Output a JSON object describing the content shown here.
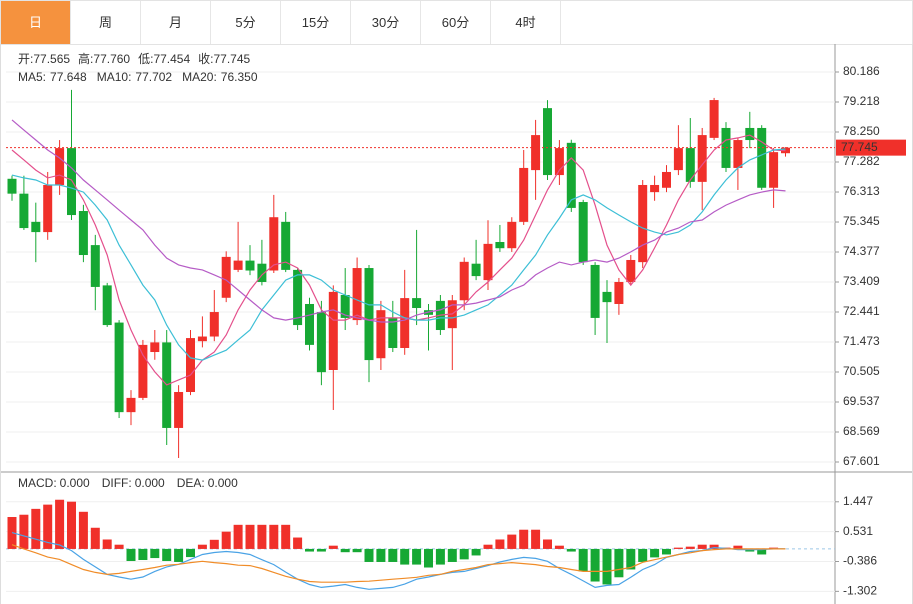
{
  "tabs": [
    "日",
    "周",
    "月",
    "5分",
    "15分",
    "30分",
    "60分",
    "4时"
  ],
  "active_tab": 0,
  "chart_data": [
    {
      "type": "candlestick",
      "info": [
        {
          "label": "开:",
          "value": "77.565"
        },
        {
          "label": "高:",
          "value": "77.760"
        },
        {
          "label": "低:",
          "value": "77.454"
        },
        {
          "label": "收:",
          "value": "77.745"
        }
      ],
      "up_color": "#f0302a",
      "down_color": "#16a834",
      "open": [
        76.74,
        76.26,
        75.35,
        75.02,
        76.54,
        77.73,
        75.7,
        74.6,
        73.3,
        72.1,
        69.21,
        69.67,
        71.15,
        71.46,
        68.7,
        69.86,
        71.5,
        71.65,
        72.9,
        73.8,
        74.1,
        74.0,
        73.78,
        75.35,
        73.8,
        72.7,
        72.44,
        70.57,
        72.99,
        72.18,
        73.86,
        70.95,
        72.25,
        71.28,
        72.89,
        72.5,
        72.8,
        71.92,
        72.82,
        74.0,
        73.47,
        74.7,
        74.5,
        75.35,
        77.02,
        79.02,
        76.86,
        77.9,
        75.99,
        73.96,
        73.09,
        72.7,
        73.41,
        74.05,
        76.31,
        76.45,
        77.02,
        77.73,
        76.64,
        78.06,
        78.38,
        77.09,
        78.38,
        78.38,
        76.45,
        77.565
      ],
      "high": [
        76.84,
        76.84,
        75.97,
        76.96,
        77.99,
        79.61,
        75.9,
        74.93,
        73.38,
        72.18,
        69.92,
        71.54,
        71.86,
        71.86,
        70.08,
        71.86,
        72.3,
        73.15,
        74.4,
        75.35,
        74.6,
        74.77,
        76.22,
        75.67,
        73.86,
        72.9,
        72.8,
        73.3,
        73.86,
        74.2,
        73.96,
        72.8,
        72.8,
        73.8,
        75.09,
        72.7,
        72.99,
        72.99,
        74.2,
        74.77,
        75.4,
        75.25,
        75.5,
        77.67,
        78.64,
        79.28,
        77.99,
        78.0,
        76.06,
        74.05,
        73.47,
        73.54,
        74.28,
        76.7,
        76.84,
        77.18,
        78.47,
        78.7,
        78.38,
        79.35,
        78.57,
        78.06,
        78.9,
        78.47,
        77.73,
        77.76
      ],
      "low": [
        76.03,
        75.09,
        74.05,
        74.77,
        76.22,
        75.41,
        74.05,
        72.5,
        71.96,
        69.02,
        68.79,
        69.6,
        70.9,
        68.15,
        67.73,
        69.76,
        71.3,
        71.5,
        72.76,
        73.73,
        73.63,
        73.3,
        73.7,
        73.73,
        71.86,
        71.2,
        70.08,
        69.28,
        71.86,
        72.02,
        70.18,
        70.57,
        71.15,
        71.06,
        72.02,
        71.2,
        71.7,
        70.57,
        72.5,
        73.47,
        73.15,
        74.38,
        74.38,
        75.25,
        76.06,
        76.7,
        76.54,
        75.67,
        73.96,
        71.7,
        71.44,
        72.35,
        73.3,
        73.86,
        76.03,
        76.31,
        76.86,
        76.45,
        75.73,
        77.99,
        76.96,
        76.38,
        77.73,
        76.38,
        75.8,
        77.454
      ],
      "close": [
        76.26,
        75.15,
        75.02,
        76.54,
        77.73,
        75.57,
        74.28,
        73.25,
        72.02,
        69.21,
        69.67,
        71.38,
        71.46,
        68.7,
        69.86,
        71.6,
        71.65,
        72.44,
        74.22,
        74.1,
        73.78,
        73.41,
        75.5,
        73.8,
        72.02,
        71.38,
        70.5,
        73.09,
        72.25,
        73.86,
        70.89,
        72.5,
        71.28,
        72.89,
        72.57,
        72.35,
        71.86,
        72.82,
        74.06,
        73.6,
        74.64,
        74.5,
        75.35,
        77.09,
        78.15,
        76.86,
        77.73,
        75.8,
        74.05,
        72.25,
        72.76,
        73.41,
        74.12,
        76.54,
        76.54,
        76.96,
        77.73,
        76.64,
        78.15,
        79.28,
        77.09,
        77.99,
        77.99,
        76.45,
        77.6,
        77.745
      ],
      "series": [
        {
          "name": "MA5:",
          "value_label": "77.648",
          "color": "#e4508c",
          "values": [
            77.67,
            77.35,
            77.02,
            76.77,
            76.86,
            76.7,
            76.06,
            75.25,
            74.28,
            72.83,
            71.86,
            71.05,
            70.51,
            70.09,
            70.25,
            70.41,
            70.89,
            71.15,
            71.7,
            72.51,
            73.15,
            73.64,
            73.96,
            74.05,
            73.86,
            73.31,
            72.51,
            72.18,
            72.18,
            72.34,
            72.18,
            72.25,
            72.25,
            72.25,
            72.18,
            72.25,
            72.34,
            72.38,
            72.67,
            73.09,
            73.41,
            73.8,
            74.18,
            74.76,
            75.57,
            76.38,
            77.02,
            77.41,
            77.02,
            75.89,
            74.6,
            73.8,
            73.31,
            73.8,
            74.51,
            75.25,
            76.06,
            76.7,
            77.19,
            77.67,
            77.99,
            78.06,
            78.15,
            77.93,
            77.67,
            77.648
          ]
        },
        {
          "name": "MA10:",
          "value_label": "77.702",
          "color": "#3dbfd6",
          "values": [
            76.86,
            76.77,
            76.7,
            76.54,
            76.54,
            76.44,
            76.31,
            75.89,
            75.41,
            74.6,
            73.96,
            73.31,
            72.83,
            72.02,
            71.38,
            70.96,
            70.89,
            71.05,
            71.21,
            71.54,
            71.86,
            72.51,
            72.99,
            73.47,
            73.64,
            73.64,
            73.47,
            73.15,
            72.99,
            72.83,
            72.67,
            72.67,
            72.44,
            72.25,
            72.18,
            72.18,
            72.25,
            72.25,
            72.34,
            72.51,
            72.67,
            72.99,
            73.31,
            73.8,
            74.28,
            74.93,
            75.47,
            76.06,
            76.22,
            76.06,
            75.8,
            75.57,
            75.35,
            75.15,
            75.02,
            74.93,
            75.02,
            75.25,
            75.67,
            76.22,
            76.7,
            77.09,
            77.35,
            77.51,
            77.67,
            77.702
          ]
        },
        {
          "name": "MA20:",
          "value_label": "76.350",
          "color": "#b65cc6",
          "values": [
            78.64,
            78.31,
            77.99,
            77.67,
            77.41,
            77.09,
            76.7,
            76.38,
            76.06,
            75.73,
            75.41,
            75.09,
            74.6,
            74.18,
            73.96,
            73.86,
            73.8,
            73.64,
            73.47,
            73.15,
            72.83,
            72.51,
            72.25,
            72.18,
            72.25,
            72.34,
            72.44,
            72.51,
            72.34,
            72.25,
            72.18,
            72.12,
            72.12,
            72.18,
            72.34,
            72.44,
            72.51,
            72.67,
            72.67,
            72.73,
            72.83,
            72.93,
            73.15,
            73.31,
            73.64,
            73.86,
            74.05,
            73.96,
            74.05,
            74.12,
            74.05,
            74.18,
            74.38,
            74.6,
            74.76,
            75.02,
            75.15,
            75.35,
            75.41,
            75.67,
            75.89,
            76.06,
            76.22,
            76.31,
            76.38,
            76.35
          ]
        }
      ],
      "ylim": [
        67.343,
        81.057
      ],
      "yticks": [
        80.186,
        79.218,
        {
          "value": 78.25,
          "label": "78.250"
        },
        77.282,
        76.313,
        75.345,
        74.377,
        73.409,
        72.441,
        71.473,
        70.505,
        69.537,
        68.569,
        67.601
      ],
      "grid": true
    },
    {
      "type": "macd",
      "series": [
        {
          "name": "MACD:",
          "value_label": "0.000",
          "kind": "bar",
          "color": "#f0302a",
          "down_color": "#16a834",
          "values": [
            0.98,
            1.05,
            1.23,
            1.36,
            1.51,
            1.45,
            1.14,
            0.65,
            0.29,
            0.13,
            -0.37,
            -0.34,
            -0.28,
            -0.37,
            -0.4,
            -0.25,
            0.13,
            0.28,
            0.53,
            0.74,
            0.74,
            0.74,
            0.74,
            0.74,
            0.35,
            -0.08,
            -0.08,
            0.1,
            -0.1,
            -0.1,
            -0.4,
            -0.4,
            -0.4,
            -0.48,
            -0.48,
            -0.57,
            -0.48,
            -0.4,
            -0.32,
            -0.2,
            0.13,
            0.29,
            0.44,
            0.59,
            0.59,
            0.29,
            0.1,
            -0.08,
            -0.69,
            -1.0,
            -1.09,
            -0.87,
            -0.63,
            -0.4,
            -0.26,
            -0.17,
            0.04,
            0.07,
            0.13,
            0.13,
            0.04,
            0.1,
            -0.08,
            -0.17,
            0.04,
            0
          ]
        },
        {
          "name": "DIFF:",
          "value_label": "0.000",
          "kind": "line",
          "color": "#4aa3e6",
          "values": [
            0.5,
            0.4,
            0.3,
            0.2,
            0.12,
            -0.05,
            -0.32,
            -0.55,
            -0.78,
            -0.86,
            -0.93,
            -0.86,
            -0.69,
            -0.55,
            -0.47,
            -0.32,
            -0.17,
            -0.11,
            -0.08,
            -0.11,
            -0.17,
            -0.33,
            -0.48,
            -0.71,
            -0.93,
            -1.09,
            -1.18,
            -1.14,
            -1.09,
            -1.18,
            -1.24,
            -1.21,
            -1.18,
            -1.08,
            -0.93,
            -0.86,
            -0.78,
            -0.72,
            -0.69,
            -0.6,
            -0.51,
            -0.4,
            -0.32,
            -0.26,
            -0.29,
            -0.38,
            -0.6,
            -0.78,
            -0.98,
            -1.18,
            -1.12,
            -1.09,
            -0.87,
            -0.63,
            -0.48,
            -0.26,
            -0.17,
            -0.08,
            -0.05,
            0.04,
            0.02,
            -0.02,
            -0.02,
            -0.02,
            0,
            0
          ]
        },
        {
          "name": "DEA:",
          "value_label": "0.000",
          "kind": "line",
          "color": "#f08c28",
          "values": [
            0.13,
            0,
            -0.12,
            -0.25,
            -0.32,
            -0.48,
            -0.63,
            -0.72,
            -0.78,
            -0.75,
            -0.69,
            -0.63,
            -0.57,
            -0.5,
            -0.47,
            -0.42,
            -0.38,
            -0.42,
            -0.45,
            -0.5,
            -0.51,
            -0.6,
            -0.72,
            -0.84,
            -0.93,
            -1.0,
            -1.02,
            -1.02,
            -1.02,
            -1.0,
            -0.99,
            -0.96,
            -0.93,
            -0.9,
            -0.87,
            -0.81,
            -0.78,
            -0.69,
            -0.63,
            -0.57,
            -0.48,
            -0.45,
            -0.42,
            -0.45,
            -0.48,
            -0.54,
            -0.57,
            -0.63,
            -0.69,
            -0.69,
            -0.69,
            -0.63,
            -0.57,
            -0.41,
            -0.33,
            -0.25,
            -0.17,
            -0.12,
            -0.05,
            -0.02,
            0,
            0,
            0,
            0,
            0,
            0
          ]
        }
      ],
      "ylim": [
        -1.69,
        2.3
      ],
      "yticks": [
        1.447,
        0.531,
        -0.386,
        -1.302
      ],
      "grid": true
    }
  ]
}
